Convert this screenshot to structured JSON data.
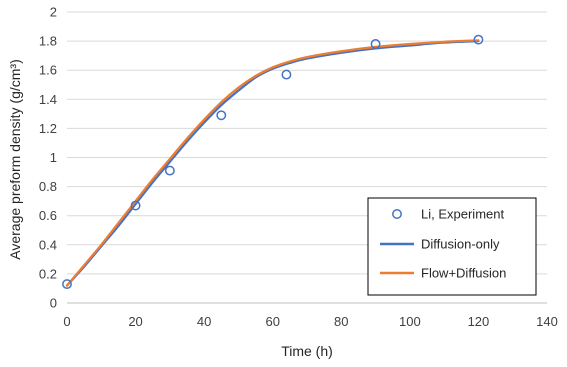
{
  "chart_data": {
    "type": "line",
    "title": "",
    "xlabel": "Time (h)",
    "ylabel": "Average preform density (g/cm³)",
    "xlim": [
      0,
      140
    ],
    "ylim": [
      0,
      2
    ],
    "x_ticks": [
      0,
      20,
      40,
      60,
      80,
      100,
      120,
      140
    ],
    "y_ticks": [
      "0",
      "0.2",
      "0.4",
      "0.6",
      "0.8",
      "1",
      "1.2",
      "1.4",
      "1.6",
      "1.8",
      "2"
    ],
    "grid": "horizontal",
    "legend_position": "bottom-right",
    "series": [
      {
        "name": "Li, Experiment",
        "style": "markers",
        "color": "#4472c4",
        "x": [
          0,
          20,
          30,
          45,
          64,
          90,
          120
        ],
        "y": [
          0.13,
          0.67,
          0.91,
          1.29,
          1.57,
          1.78,
          1.81
        ]
      },
      {
        "name": "Diffusion-only",
        "style": "line",
        "color": "#4472c4",
        "x": [
          0,
          5,
          10,
          15,
          20,
          25,
          30,
          35,
          40,
          45,
          50,
          55,
          60,
          65,
          70,
          80,
          90,
          100,
          110,
          120
        ],
        "y": [
          0.12,
          0.25,
          0.39,
          0.53,
          0.68,
          0.83,
          0.97,
          1.11,
          1.24,
          1.36,
          1.46,
          1.55,
          1.61,
          1.65,
          1.68,
          1.72,
          1.75,
          1.77,
          1.79,
          1.8
        ]
      },
      {
        "name": "Flow+Diffusion",
        "style": "line",
        "color": "#ed7d31",
        "x": [
          0,
          5,
          10,
          15,
          20,
          25,
          30,
          35,
          40,
          45,
          50,
          55,
          60,
          65,
          70,
          80,
          90,
          100,
          110,
          120
        ],
        "y": [
          0.12,
          0.26,
          0.4,
          0.55,
          0.7,
          0.85,
          0.99,
          1.13,
          1.26,
          1.38,
          1.48,
          1.56,
          1.62,
          1.66,
          1.69,
          1.73,
          1.76,
          1.78,
          1.795,
          1.805
        ]
      }
    ]
  }
}
